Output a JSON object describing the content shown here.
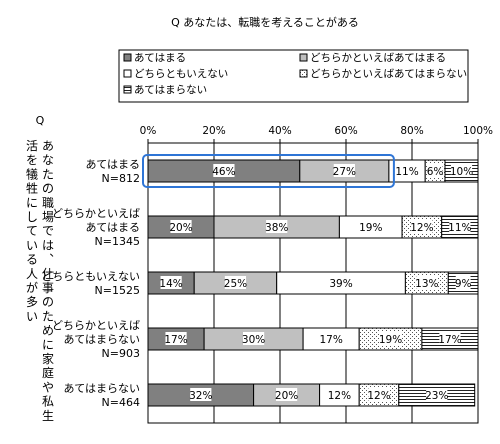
{
  "chart_data": {
    "type": "bar",
    "stacked": true,
    "orientation": "horizontal",
    "title": "Q あなたは、転職を考えることがある",
    "ylabel": "Q あなたの職場では、仕事のために家庭や私生活を犠牲にしている人が多い",
    "xlim": [
      0,
      100
    ],
    "x_ticks": [
      "0%",
      "20%",
      "40%",
      "60%",
      "80%",
      "100%"
    ],
    "legend_position": "top",
    "grid": true,
    "categories": [
      {
        "label": "あてはまる",
        "n": "N=812"
      },
      {
        "label": "どちらかといえば\nあてはまる",
        "n": "N=1345"
      },
      {
        "label": "どちらともいえない",
        "n": "N=1525"
      },
      {
        "label": "どちらかといえば\nあてはまらない",
        "n": "N=903"
      },
      {
        "label": "あてはまらない",
        "n": "N=464"
      }
    ],
    "series": [
      {
        "name": "あてはまる",
        "fill": "#808080",
        "values": [
          46,
          20,
          14,
          17,
          32
        ],
        "labels": [
          "46%",
          "20%",
          "14%",
          "17%",
          "32%"
        ]
      },
      {
        "name": "どちらかといえばあてはまる",
        "fill": "#c0c0c0",
        "values": [
          27,
          38,
          25,
          30,
          20
        ],
        "labels": [
          "27%",
          "38%",
          "25%",
          "30%",
          "20%"
        ]
      },
      {
        "name": "どちらともいえない",
        "fill": "#ffffff",
        "values": [
          11,
          19,
          39,
          17,
          12
        ],
        "labels": [
          "11%",
          "19%",
          "39%",
          "17%",
          "12%"
        ]
      },
      {
        "name": "どちらかといえばあてはまらない",
        "fill": "dots",
        "values": [
          6,
          12,
          13,
          19,
          12
        ],
        "labels": [
          "6%",
          "12%",
          "13%",
          "19%",
          "12%"
        ]
      },
      {
        "name": "あてはまらない",
        "fill": "hlines",
        "values": [
          10,
          11,
          9,
          17,
          23
        ],
        "labels": [
          "10%",
          "11%",
          "9%",
          "17%",
          "23%"
        ]
      }
    ],
    "highlight_color": "#2e75d6"
  }
}
